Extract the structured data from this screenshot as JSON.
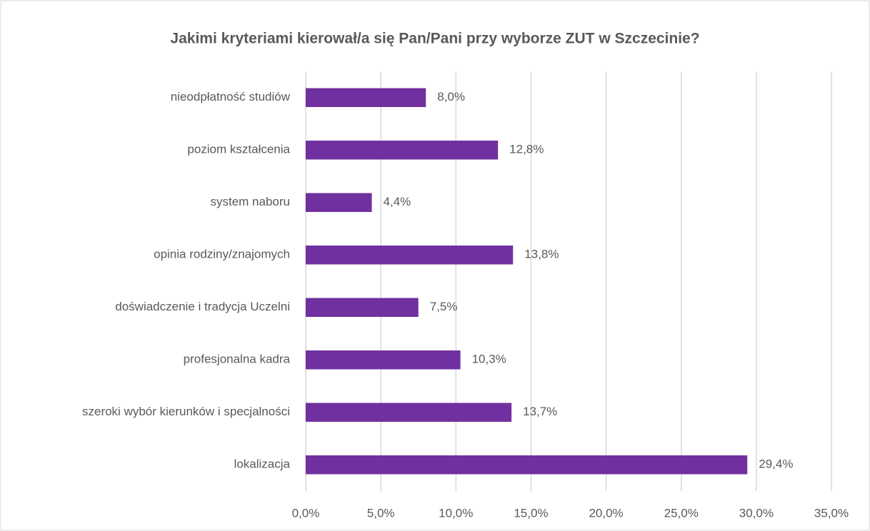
{
  "chart_data": {
    "type": "bar",
    "orientation": "horizontal",
    "title": "Jakimi kryteriami kierował/a się Pan/Pani przy wyborze ZUT w Szczecinie?",
    "categories": [
      "nieodpłatność studiów",
      "poziom kształcenia",
      "system naboru",
      "opinia rodziny/znajomych",
      "doświadczenie i tradycja Uczelni",
      "profesjonalna kadra",
      "szeroki wybór kierunków i specjalności",
      "lokalizacja"
    ],
    "values": [
      8.0,
      12.8,
      4.4,
      13.8,
      7.5,
      10.3,
      13.7,
      29.4
    ],
    "value_labels": [
      "8,0%",
      "12,8%",
      "4,4%",
      "13,8%",
      "7,5%",
      "10,3%",
      "13,7%",
      "29,4%"
    ],
    "color": "#7030a0",
    "xlim": [
      0,
      35
    ],
    "xticks": [
      {
        "value": 0,
        "label": "0,0%"
      },
      {
        "value": 5,
        "label": "5,0%"
      },
      {
        "value": 10,
        "label": "10,0%"
      },
      {
        "value": 15,
        "label": "15,0%"
      },
      {
        "value": 20,
        "label": "20,0%"
      },
      {
        "value": 25,
        "label": "25,0%"
      },
      {
        "value": 30,
        "label": "30,0%"
      },
      {
        "value": 35,
        "label": "35,0%"
      }
    ],
    "grid": true
  }
}
